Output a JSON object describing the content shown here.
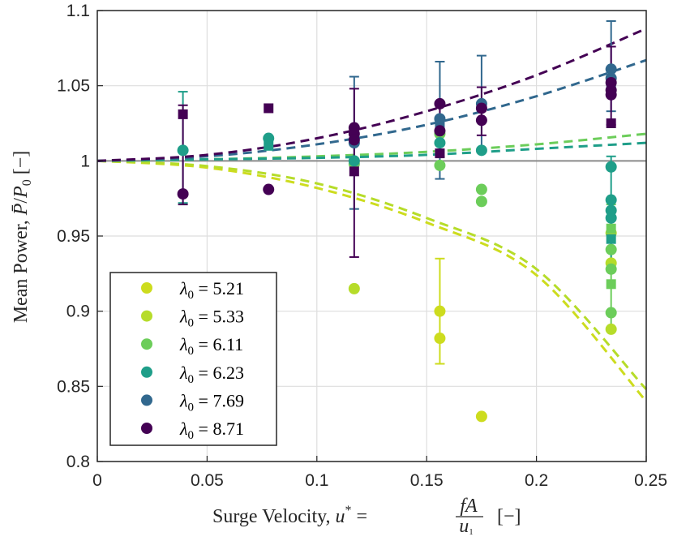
{
  "chart_data": {
    "type": "scatter",
    "title": "",
    "xlabel": "Surge Velocity, u* = fA/u1 [−]",
    "xlabel_parts": {
      "lead": "Surge Velocity, ",
      "var": "u",
      "sup": "*",
      "eq": " = ",
      "num": "fA",
      "den": "u",
      "den_sub": "1",
      "tail": "[−]"
    },
    "ylabel": "Mean Power, P̄/P0 [−]",
    "ylabel_parts": {
      "lead": "Mean Power, ",
      "num": "P̄",
      "slash": "/",
      "den": "P",
      "sub": "0",
      "tail": " [−]"
    },
    "xlim": [
      0,
      0.25
    ],
    "ylim": [
      0.8,
      1.1
    ],
    "xticks": [
      "0",
      "0.05",
      "0.1",
      "0.15",
      "0.2",
      "0.25"
    ],
    "yticks": [
      "0.8",
      "0.85",
      "0.9",
      "0.95",
      "1",
      "1.05",
      "1.1"
    ],
    "grid": true,
    "legend_position": "bottom-left",
    "reference_line": 1.0,
    "series": [
      {
        "name": "λ0 = 5.21",
        "color": "#cddc1e",
        "circles": [
          [
            0.156,
            0.9
          ],
          [
            0.156,
            0.882
          ],
          [
            0.175,
            0.83
          ]
        ],
        "squares": [],
        "errorbars": [
          [
            0.156,
            0.9,
            0.035
          ]
        ],
        "curve": [
          [
            0,
            1.0
          ],
          [
            0.05,
            0.9955
          ],
          [
            0.1,
            0.982
          ],
          [
            0.15,
            0.959
          ],
          [
            0.2,
            0.924
          ],
          [
            0.25,
            0.84
          ]
        ]
      },
      {
        "name": "λ0 = 5.33",
        "color": "#b6dc2a",
        "circles": [
          [
            0.117,
            0.915
          ],
          [
            0.234,
            0.932
          ],
          [
            0.234,
            0.952
          ],
          [
            0.234,
            0.888
          ]
        ],
        "squares": [],
        "errorbars": [],
        "curve": [
          [
            0,
            1.0
          ],
          [
            0.05,
            0.9965
          ],
          [
            0.1,
            0.985
          ],
          [
            0.15,
            0.962
          ],
          [
            0.2,
            0.928
          ],
          [
            0.25,
            0.848
          ]
        ]
      },
      {
        "name": "λ0 = 6.11",
        "color": "#6ccd5a",
        "circles": [
          [
            0.117,
            0.998
          ],
          [
            0.156,
            1.018
          ],
          [
            0.156,
            0.997
          ],
          [
            0.175,
            0.981
          ],
          [
            0.175,
            0.973
          ],
          [
            0.234,
            0.928
          ],
          [
            0.234,
            0.899
          ],
          [
            0.234,
            0.941
          ]
        ],
        "squares": [
          [
            0.234,
            0.918
          ],
          [
            0.234,
            0.955
          ]
        ],
        "errorbars": [
          [
            0.234,
            0.929,
            0.042
          ]
        ],
        "curve": [
          [
            0,
            1.0
          ],
          [
            0.05,
            1.001
          ],
          [
            0.1,
            1.003
          ],
          [
            0.15,
            1.006
          ],
          [
            0.2,
            1.011
          ],
          [
            0.25,
            1.018
          ]
        ]
      },
      {
        "name": "λ0 = 6.23",
        "color": "#1f9e89",
        "circles": [
          [
            0.039,
            1.007
          ],
          [
            0.078,
            1.015
          ],
          [
            0.117,
            1.0
          ],
          [
            0.156,
            1.012
          ],
          [
            0.175,
            1.007
          ],
          [
            0.234,
            0.996
          ],
          [
            0.234,
            0.974
          ],
          [
            0.234,
            0.962
          ],
          [
            0.234,
            0.967
          ]
        ],
        "squares": [
          [
            0.078,
            1.01
          ],
          [
            0.234,
            0.948
          ]
        ],
        "errorbars": [
          [
            0.039,
            1.009,
            0.037
          ],
          [
            0.234,
            0.967,
            0.036
          ]
        ],
        "curve": [
          [
            0,
            1.0
          ],
          [
            0.05,
            1.001
          ],
          [
            0.1,
            1.002
          ],
          [
            0.15,
            1.004
          ],
          [
            0.2,
            1.008
          ],
          [
            0.25,
            1.012
          ]
        ]
      },
      {
        "name": "λ0 = 7.69",
        "color": "#31688e",
        "circles": [
          [
            0.117,
            1.012
          ],
          [
            0.156,
            1.028
          ],
          [
            0.175,
            1.038
          ],
          [
            0.234,
            1.061
          ],
          [
            0.234,
            1.055
          ]
        ],
        "squares": [
          [
            0.156,
            1.025
          ],
          [
            0.234,
            1.048
          ]
        ],
        "errorbars": [
          [
            0.117,
            1.012,
            0.044
          ],
          [
            0.156,
            1.027,
            0.039
          ],
          [
            0.175,
            1.038,
            0.032
          ],
          [
            0.234,
            1.063,
            0.03
          ]
        ],
        "curve": [
          [
            0,
            1.0
          ],
          [
            0.05,
            1.003
          ],
          [
            0.1,
            1.011
          ],
          [
            0.15,
            1.024
          ],
          [
            0.2,
            1.043
          ],
          [
            0.25,
            1.067
          ]
        ]
      },
      {
        "name": "λ0 = 8.71",
        "color": "#440154",
        "circles": [
          [
            0.039,
            0.978
          ],
          [
            0.078,
            0.981
          ],
          [
            0.117,
            1.022
          ],
          [
            0.117,
            1.018
          ],
          [
            0.117,
            1.014
          ],
          [
            0.156,
            1.038
          ],
          [
            0.156,
            1.02
          ],
          [
            0.175,
            1.035
          ],
          [
            0.175,
            1.027
          ],
          [
            0.234,
            1.052
          ],
          [
            0.234,
            1.047
          ],
          [
            0.234,
            1.044
          ]
        ],
        "squares": [
          [
            0.039,
            1.031
          ],
          [
            0.078,
            1.035
          ],
          [
            0.117,
            0.993
          ],
          [
            0.156,
            1.005
          ],
          [
            0.234,
            1.025
          ]
        ],
        "errorbars": [
          [
            0.039,
            1.004,
            0.033
          ],
          [
            0.117,
            0.992,
            0.056
          ],
          [
            0.156,
            1.021,
            0.018
          ],
          [
            0.175,
            1.033,
            0.016
          ],
          [
            0.234,
            1.05,
            0.026
          ]
        ],
        "curve": [
          [
            0,
            1.0
          ],
          [
            0.05,
            1.004
          ],
          [
            0.1,
            1.015
          ],
          [
            0.15,
            1.033
          ],
          [
            0.2,
            1.057
          ],
          [
            0.25,
            1.088
          ]
        ]
      }
    ]
  }
}
